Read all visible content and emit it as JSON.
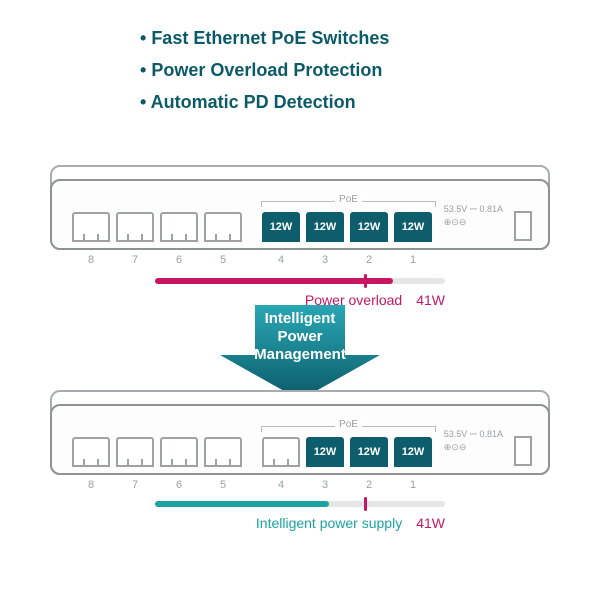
{
  "bullets": [
    "Fast Ethernet PoE Switches",
    "Power Overload Protection",
    "Automatic PD Detection"
  ],
  "colors": {
    "brand": "#0b5a68",
    "port_active": "#0e5d6c",
    "overload": "#c71763",
    "supply": "#1aa3a3",
    "grey": "#9aa0a1",
    "track": "#e5e6e6",
    "tick": "#c71763"
  },
  "switch": {
    "poe_label": "PoE",
    "spec_line1": "53.5V ⎓ 0.81A",
    "spec_line2": "⊕⊙⊖",
    "port_power": "12W",
    "port_numbers": [
      "8",
      "7",
      "6",
      "5",
      "4",
      "3",
      "2",
      "1"
    ]
  },
  "top_state": {
    "active_ports": [
      4,
      3,
      2,
      1
    ],
    "bar_fill_pct": 82,
    "tick_pct": 72,
    "caption_label": "Power overload",
    "caption_value": "41W"
  },
  "bottom_state": {
    "active_ports": [
      3,
      2,
      1
    ],
    "bar_fill_pct": 60,
    "tick_pct": 72,
    "caption_label": "Intelligent power supply",
    "caption_value": "41W"
  },
  "arrow": {
    "line1": "Intelligent",
    "line2": "Power",
    "line3": "Management",
    "fill": "#1b8e9c"
  }
}
